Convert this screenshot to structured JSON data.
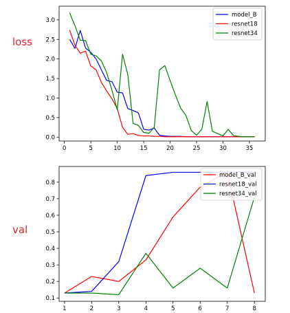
{
  "colors": {
    "red": "#ff0000",
    "blue": "#0000ff",
    "green": "#008000",
    "side_label": "#e8262a",
    "axes": "#000000",
    "background": "#ffffff"
  },
  "chart_data": [
    {
      "type": "line",
      "side_label": "loss",
      "xlim": [
        -1,
        38
      ],
      "ylim": [
        -0.1,
        3.35
      ],
      "xticks": [
        0,
        5,
        10,
        15,
        20,
        25,
        30,
        35
      ],
      "yticks": [
        0.0,
        0.5,
        1.0,
        1.5,
        2.0,
        2.5,
        3.0
      ],
      "ytick_labels": [
        "0.0",
        "0.5",
        "1.0",
        "1.5",
        "2.0",
        "2.5",
        "3.0"
      ],
      "grid": false,
      "legend_position": "top-right",
      "series": [
        {
          "name": "model_B",
          "color": "#0000ff",
          "x": [
            1,
            2,
            3,
            4,
            5,
            6,
            7,
            8,
            9,
            10,
            11,
            12,
            13,
            14,
            15,
            16,
            17,
            18,
            19,
            20,
            21,
            22,
            23,
            24,
            25,
            26,
            27,
            28,
            29,
            30,
            31,
            32,
            33,
            34,
            35,
            36
          ],
          "y": [
            2.5,
            2.27,
            2.73,
            2.28,
            2.17,
            2.0,
            1.72,
            1.45,
            1.42,
            1.15,
            1.13,
            0.73,
            0.68,
            0.62,
            0.2,
            0.18,
            0.23,
            0.05,
            0.03,
            0.02,
            0.02,
            0.02,
            0.01,
            0.01,
            0.01,
            0.01,
            0.01,
            0.01,
            0.01,
            0.01,
            0.01,
            0.01,
            0.01,
            0.01,
            0.01,
            0.01
          ]
        },
        {
          "name": "resnet18",
          "color": "#ff0000",
          "x": [
            1,
            2,
            3,
            4,
            5,
            6,
            7,
            8,
            9,
            10,
            11,
            12,
            13,
            14,
            15,
            16,
            17,
            18,
            19,
            20,
            21,
            22,
            23,
            24,
            25,
            26,
            27,
            28,
            29,
            30,
            31,
            32,
            33,
            34,
            35,
            36
          ],
          "y": [
            2.74,
            2.35,
            2.15,
            2.2,
            1.82,
            1.72,
            1.4,
            1.18,
            0.98,
            0.73,
            0.25,
            0.07,
            0.09,
            0.04,
            0.03,
            0.03,
            0.02,
            0.02,
            0.01,
            0.01,
            0.01,
            0.01,
            0.01,
            0.01,
            0.01,
            0.01,
            0.01,
            0.01,
            0.01,
            0.01,
            0.01,
            0.01,
            0.01,
            0.01,
            0.01,
            0.01
          ]
        },
        {
          "name": "resnet34",
          "color": "#008000",
          "x": [
            1,
            2,
            3,
            4,
            5,
            6,
            7,
            8,
            9,
            10,
            11,
            12,
            13,
            14,
            15,
            16,
            17,
            18,
            19,
            20,
            21,
            22,
            23,
            24,
            25,
            26,
            27,
            28,
            29,
            30,
            31,
            32,
            33,
            34,
            35,
            36
          ],
          "y": [
            3.18,
            2.85,
            2.48,
            2.47,
            2.12,
            2.08,
            1.95,
            1.65,
            1.2,
            0.7,
            2.12,
            1.6,
            0.35,
            0.3,
            0.12,
            0.1,
            0.25,
            1.72,
            1.83,
            1.45,
            1.08,
            0.74,
            0.55,
            0.17,
            0.05,
            0.2,
            0.91,
            0.15,
            0.09,
            0.03,
            0.2,
            0.04,
            0.02,
            0.01,
            0.01,
            0.01
          ]
        }
      ]
    },
    {
      "type": "line",
      "side_label": "val",
      "xlim": [
        0.8,
        8.4
      ],
      "ylim": [
        0.08,
        0.895
      ],
      "xticks": [
        1,
        2,
        3,
        4,
        5,
        6,
        7,
        8
      ],
      "yticks": [
        0.1,
        0.2,
        0.3,
        0.4,
        0.5,
        0.6,
        0.7,
        0.8
      ],
      "ytick_labels": [
        "0.1",
        "0.2",
        "0.3",
        "0.4",
        "0.5",
        "0.6",
        "0.7",
        "0.8"
      ],
      "grid": false,
      "legend_position": "top-right",
      "series": [
        {
          "name": "model_B_val",
          "color": "#ff0000",
          "x": [
            1,
            2,
            3,
            4,
            5,
            6,
            7,
            8
          ],
          "y": [
            0.13,
            0.23,
            0.2,
            0.33,
            0.59,
            0.77,
            0.86,
            0.13
          ]
        },
        {
          "name": "resnet18_val",
          "color": "#0000ff",
          "x": [
            1,
            2,
            3,
            4,
            5,
            6,
            7,
            8
          ],
          "y": [
            0.13,
            0.14,
            0.32,
            0.84,
            0.86,
            0.86,
            0.86,
            0.86
          ]
        },
        {
          "name": "resnet34_val",
          "color": "#008000",
          "x": [
            1,
            2,
            3,
            4,
            5,
            6,
            7,
            8
          ],
          "y": [
            0.13,
            0.13,
            0.12,
            0.37,
            0.16,
            0.28,
            0.16,
            0.71
          ]
        }
      ]
    }
  ]
}
